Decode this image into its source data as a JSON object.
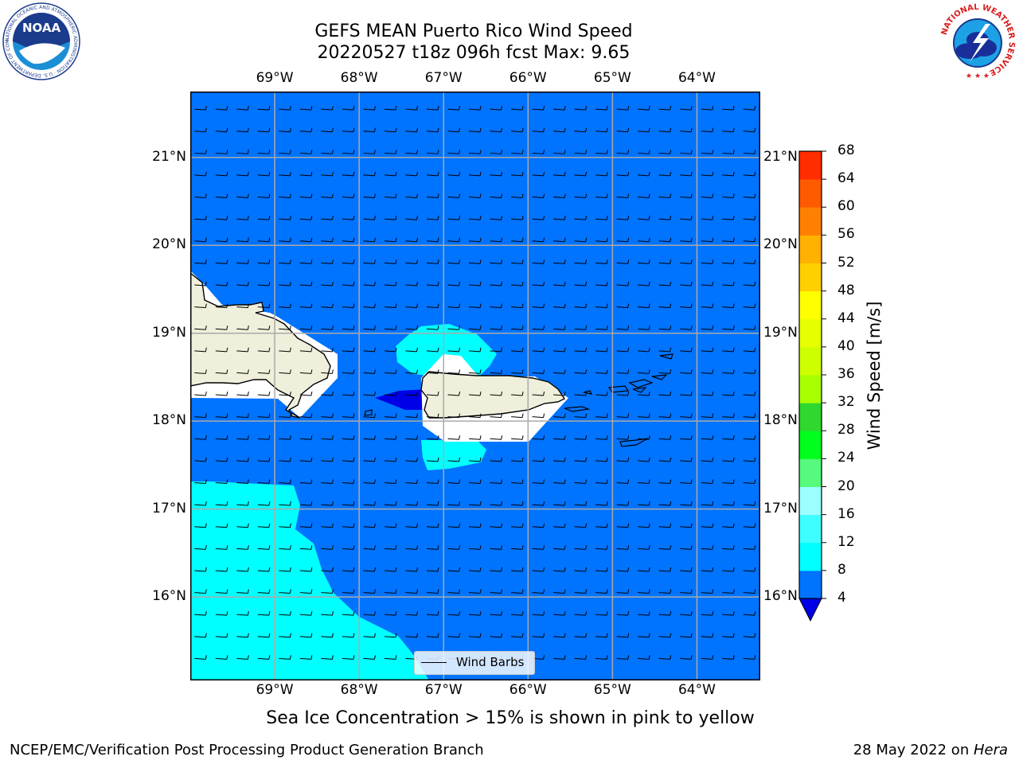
{
  "title": {
    "line1": "GEFS MEAN Puerto Rico Wind Speed",
    "line2": "20220527 t18z 096h fcst   Max: 9.65"
  },
  "logos": {
    "noaa_text": "NOAA",
    "noaa_ring": "NATIONAL OCEANIC AND ATMOSPHERIC ADMINISTRATION · U.S. DEPARTMENT OF COMMERCE",
    "nws_ring": "NATIONAL WEATHER SERVICE"
  },
  "map": {
    "lon_range": [
      -70,
      -63.25
    ],
    "lat_range": [
      15.05,
      21.75
    ],
    "grid": true,
    "lon_ticks": [
      {
        "value": -69,
        "label": "69°W"
      },
      {
        "value": -68,
        "label": "68°W"
      },
      {
        "value": -67,
        "label": "67°W"
      },
      {
        "value": -66,
        "label": "66°W"
      },
      {
        "value": -65,
        "label": "65°W"
      },
      {
        "value": -64,
        "label": "64°W"
      }
    ],
    "lat_ticks": [
      {
        "value": 21,
        "label": "21°N"
      },
      {
        "value": 20,
        "label": "20°N"
      },
      {
        "value": 19,
        "label": "19°N"
      },
      {
        "value": 18,
        "label": "18°N"
      },
      {
        "value": 17,
        "label": "17°N"
      },
      {
        "value": 16,
        "label": "16°N"
      }
    ],
    "colors": {
      "ocean_4_8": "#0073ff",
      "band_8_12": "#00ffff",
      "band_0_4": "#0000e6",
      "land": "#efefdb",
      "masked": "#ffffff",
      "grid": "#aaaaaa"
    },
    "barb_spacing_deg": 0.25,
    "barb_direction": "easterly",
    "legend": "Wind Barbs"
  },
  "colorbar": {
    "title": "Wind Speed [m/s]",
    "extend": "min",
    "under_color": "#0000e6",
    "levels": [
      4,
      8,
      12,
      16,
      20,
      24,
      28,
      32,
      36,
      40,
      44,
      48,
      52,
      56,
      60,
      64,
      68
    ],
    "tick_labels": [
      "4",
      "8",
      "12",
      "16",
      "20",
      "24",
      "28",
      "32",
      "36",
      "40",
      "44",
      "48",
      "52",
      "56",
      "60",
      "64",
      "68"
    ],
    "colors": [
      "#0073ff",
      "#00ffff",
      "#3dffff",
      "#9cffff",
      "#56fa7c",
      "#00ff1c",
      "#2fd82c",
      "#a8ff00",
      "#ceff00",
      "#e7ff00",
      "#ffff00",
      "#ffd000",
      "#ffb000",
      "#ff8000",
      "#ff5a00",
      "#ff2d00"
    ]
  },
  "caption": "Sea Ice Concentration > 15% is shown in pink to yellow",
  "footer": {
    "left": "NCEP/EMC/Verification Post Processing Product Generation Branch",
    "right_prefix": "28 May 2022 on ",
    "right_machine": "Hera"
  }
}
